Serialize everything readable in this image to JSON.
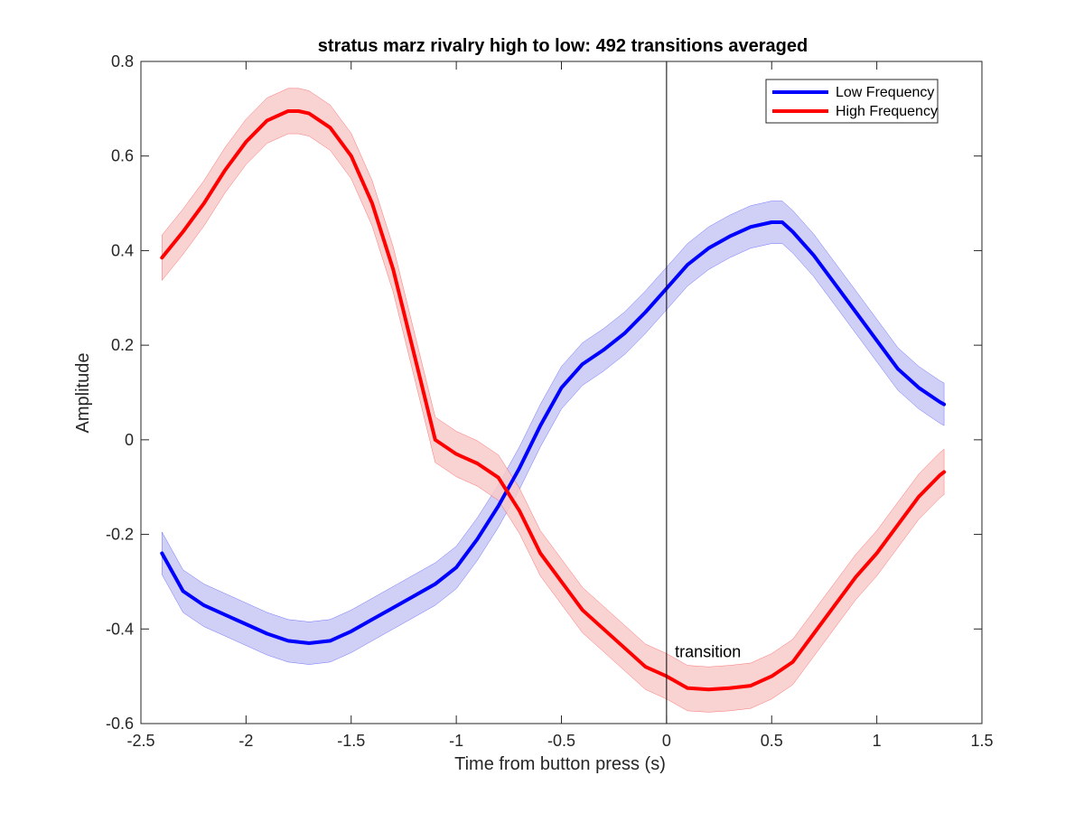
{
  "chart_data": {
    "type": "line",
    "title": "stratus marz rivalry high to low: 492 transitions averaged",
    "xlabel": "Time from button press (s)",
    "ylabel": "Amplitude",
    "xlim": [
      -2.5,
      1.5
    ],
    "ylim": [
      -0.6,
      0.8
    ],
    "xticks": [
      -2.5,
      -2,
      -1.5,
      -1,
      -0.5,
      0,
      0.5,
      1,
      1.5
    ],
    "xtick_labels": [
      "-2.5",
      "-2",
      "-1.5",
      "-1",
      "-0.5",
      "0",
      "0.5",
      "1",
      "1.5"
    ],
    "yticks": [
      -0.6,
      -0.4,
      -0.2,
      0,
      0.2,
      0.4,
      0.6,
      0.8
    ],
    "ytick_labels": [
      "-0.6",
      "-0.4",
      "-0.2",
      "0",
      "0.2",
      "0.4",
      "0.6",
      "0.8"
    ],
    "grid": false,
    "legend_position": "top-right",
    "annotations": [
      {
        "text": "transition",
        "x": 0.04,
        "y": -0.46
      }
    ],
    "vertical_line_x": 0,
    "series": [
      {
        "name": "Low Frequency",
        "color": "#0000ff",
        "band_color": "#c8c8f5",
        "band_halfwidth": 0.045,
        "x": [
          -2.4,
          -2.3,
          -2.2,
          -2.1,
          -2.0,
          -1.9,
          -1.8,
          -1.7,
          -1.6,
          -1.5,
          -1.4,
          -1.3,
          -1.2,
          -1.1,
          -1.0,
          -0.9,
          -0.8,
          -0.7,
          -0.6,
          -0.5,
          -0.4,
          -0.3,
          -0.2,
          -0.1,
          0.0,
          0.1,
          0.2,
          0.3,
          0.4,
          0.5,
          0.55,
          0.6,
          0.7,
          0.8,
          0.9,
          1.0,
          1.1,
          1.2,
          1.3,
          1.32
        ],
        "y": [
          -0.24,
          -0.32,
          -0.35,
          -0.37,
          -0.39,
          -0.41,
          -0.425,
          -0.43,
          -0.425,
          -0.405,
          -0.38,
          -0.355,
          -0.33,
          -0.305,
          -0.27,
          -0.21,
          -0.14,
          -0.06,
          0.03,
          0.11,
          0.16,
          0.19,
          0.225,
          0.27,
          0.32,
          0.37,
          0.405,
          0.43,
          0.45,
          0.46,
          0.46,
          0.44,
          0.39,
          0.33,
          0.27,
          0.21,
          0.15,
          0.11,
          0.08,
          0.075
        ]
      },
      {
        "name": "High Frequency",
        "color": "#ff0000",
        "band_color": "#f8caca",
        "band_halfwidth": 0.048,
        "x": [
          -2.4,
          -2.3,
          -2.2,
          -2.1,
          -2.0,
          -1.9,
          -1.8,
          -1.75,
          -1.7,
          -1.6,
          -1.5,
          -1.4,
          -1.3,
          -1.2,
          -1.1,
          -1.0,
          -0.9,
          -0.8,
          -0.7,
          -0.6,
          -0.5,
          -0.4,
          -0.3,
          -0.2,
          -0.1,
          0.0,
          0.1,
          0.2,
          0.3,
          0.4,
          0.5,
          0.6,
          0.7,
          0.8,
          0.9,
          1.0,
          1.1,
          1.2,
          1.3,
          1.32
        ],
        "y": [
          0.385,
          0.44,
          0.5,
          0.57,
          0.63,
          0.675,
          0.695,
          0.695,
          0.69,
          0.66,
          0.6,
          0.5,
          0.36,
          0.18,
          0.0,
          -0.03,
          -0.05,
          -0.08,
          -0.15,
          -0.24,
          -0.3,
          -0.36,
          -0.4,
          -0.44,
          -0.48,
          -0.5,
          -0.525,
          -0.528,
          -0.525,
          -0.52,
          -0.5,
          -0.47,
          -0.41,
          -0.35,
          -0.29,
          -0.24,
          -0.18,
          -0.12,
          -0.075,
          -0.068
        ]
      }
    ]
  }
}
